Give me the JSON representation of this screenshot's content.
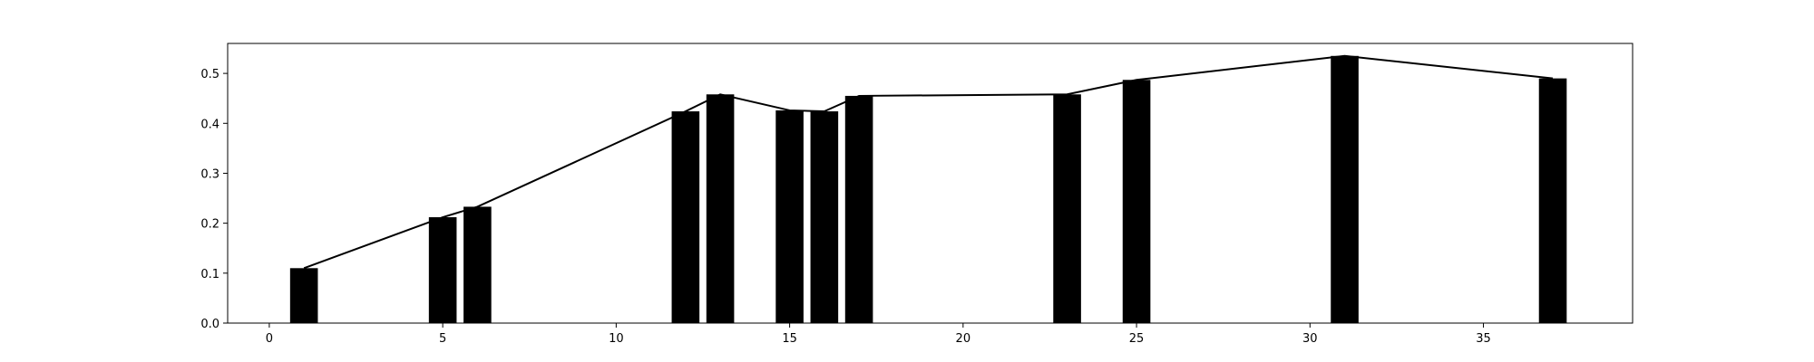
{
  "chart_data": {
    "type": "bar",
    "x": [
      1,
      5,
      6,
      12,
      13,
      15,
      16,
      17,
      23,
      25,
      31,
      37
    ],
    "values": [
      0.11,
      0.212,
      0.233,
      0.424,
      0.458,
      0.426,
      0.424,
      0.455,
      0.458,
      0.487,
      0.535,
      0.49
    ],
    "line": {
      "x": [
        1,
        5,
        6,
        12,
        13,
        15,
        16,
        17,
        23,
        25,
        31,
        37
      ],
      "y": [
        0.11,
        0.212,
        0.233,
        0.424,
        0.458,
        0.426,
        0.424,
        0.455,
        0.458,
        0.487,
        0.535,
        0.49
      ]
    },
    "xlim": [
      -1.2,
      39.3
    ],
    "ylim": [
      0,
      0.56
    ],
    "xticks": [
      0,
      5,
      10,
      15,
      20,
      25,
      30,
      35
    ],
    "yticks": [
      0.0,
      0.1,
      0.2,
      0.3,
      0.4,
      0.5
    ],
    "xtick_labels": [
      "0",
      "5",
      "10",
      "15",
      "20",
      "25",
      "30",
      "35"
    ],
    "ytick_labels": [
      "0.0",
      "0.1",
      "0.2",
      "0.3",
      "0.4",
      "0.5"
    ],
    "bar_width": 0.8,
    "bar_color": "#000000",
    "line_color": "#000000",
    "grid": false,
    "title": "",
    "xlabel": "",
    "ylabel": ""
  }
}
